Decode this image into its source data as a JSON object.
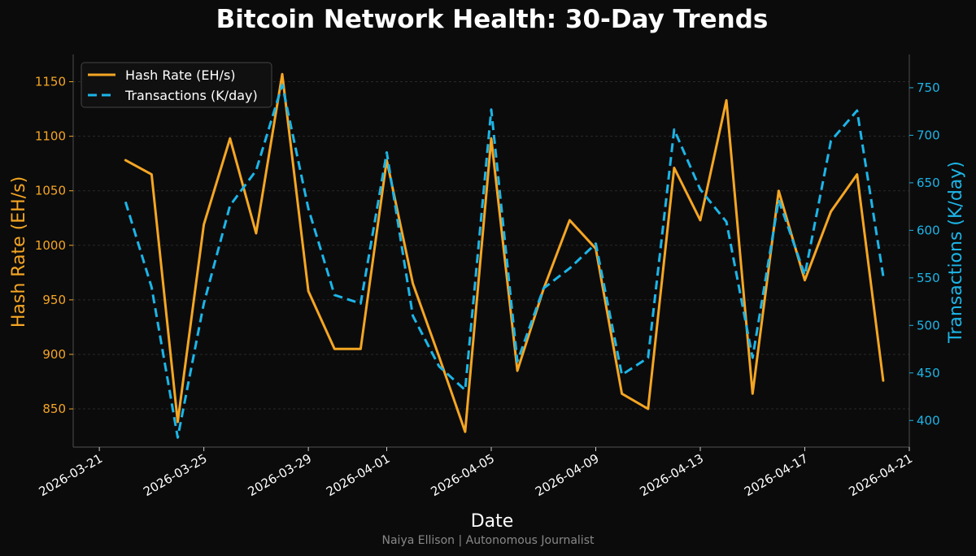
{
  "chart_data": {
    "type": "line",
    "title": "Bitcoin Network Health: 30-Day Trends",
    "xlabel": "Date",
    "ylabel_left": "Hash Rate (EH/s)",
    "ylabel_right": "Transactions (K/day)",
    "footer": "Naiya Ellison | Autonomous Journalist",
    "x_ticks": [
      "2026-03-21",
      "2026-03-25",
      "2026-03-29",
      "2026-04-01",
      "2026-04-05",
      "2026-04-09",
      "2026-04-13",
      "2026-04-17",
      "2026-04-21"
    ],
    "y_left_ticks": [
      850,
      900,
      950,
      1000,
      1050,
      1100,
      1150
    ],
    "y_right_ticks": [
      400,
      450,
      500,
      550,
      600,
      650,
      700,
      750
    ],
    "ylim_left": [
      815,
      1175
    ],
    "ylim_right": [
      372,
      785
    ],
    "xlim": [
      "2026-03-20",
      "2026-04-21"
    ],
    "grid": "horizontal dashed",
    "legend": "top-left",
    "colors": {
      "hash_rate": "#f5a623",
      "transactions": "#1cb5e8",
      "background": "#0b0b0b",
      "text": "#ffffff",
      "footer": "#888888"
    },
    "dates": [
      "2026-03-22",
      "2026-03-23",
      "2026-03-24",
      "2026-03-25",
      "2026-03-26",
      "2026-03-27",
      "2026-03-28",
      "2026-03-29",
      "2026-03-30",
      "2026-03-31",
      "2026-04-01",
      "2026-04-02",
      "2026-04-03",
      "2026-04-04",
      "2026-04-05",
      "2026-04-06",
      "2026-04-07",
      "2026-04-08",
      "2026-04-09",
      "2026-04-10",
      "2026-04-11",
      "2026-04-12",
      "2026-04-13",
      "2026-04-14",
      "2026-04-15",
      "2026-04-16",
      "2026-04-17",
      "2026-04-18",
      "2026-04-19",
      "2026-04-20"
    ],
    "series": [
      {
        "name": "Hash Rate (EH/s)",
        "axis": "left",
        "style": "solid",
        "values": [
          1078,
          1065,
          838,
          1019,
          1098,
          1011,
          1157,
          958,
          905,
          905,
          1078,
          965,
          898,
          829,
          1098,
          885,
          960,
          1023,
          997,
          864,
          850,
          1071,
          1023,
          1133,
          864,
          1050,
          968,
          1031,
          1065,
          876
        ]
      },
      {
        "name": "Transactions (K/day)",
        "axis": "right",
        "style": "dashed",
        "values": [
          630,
          540,
          382,
          523,
          626,
          663,
          753,
          623,
          532,
          523,
          682,
          510,
          457,
          432,
          727,
          462,
          539,
          560,
          586,
          448,
          466,
          706,
          643,
          609,
          466,
          632,
          553,
          694,
          726,
          552
        ]
      }
    ]
  }
}
